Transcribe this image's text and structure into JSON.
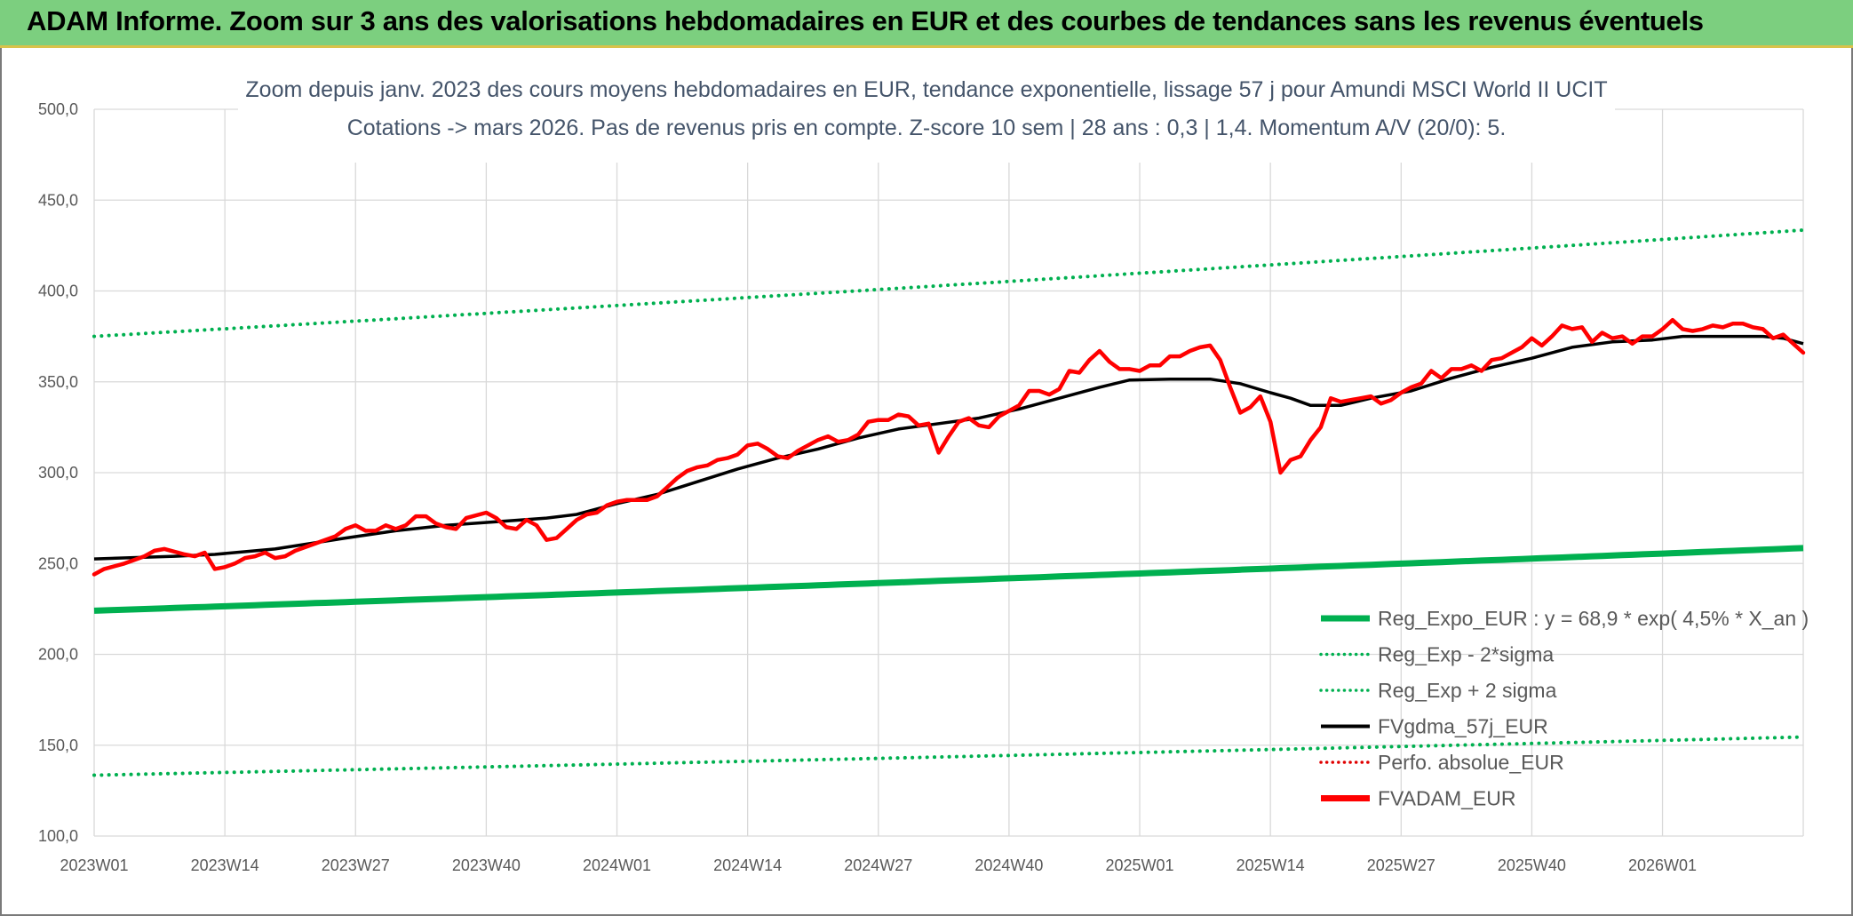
{
  "banner": {
    "title": "ADAM Informe. Zoom sur 3 ans des valorisations hebdomadaires en EUR et des courbes de tendances sans les revenus éventuels",
    "color": "#7ccf7f"
  },
  "chart_data": {
    "type": "line",
    "title": "",
    "subtitle_lines": [
      "Zoom depuis janv. 2023 des cours moyens hebdomadaires en EUR, tendance exponentielle, lissage 57 j pour Amundi MSCI World II UCIT",
      "Cotations -> mars 2026. Pas de revenus pris en compte. Z-score 10 sem | 28 ans : 0,3 | 1,4. Momentum A/V (20/0): 5."
    ],
    "xlabel": "",
    "ylabel": "",
    "ylim": [
      100,
      500
    ],
    "y_ticks": [
      "100,0",
      "150,0",
      "200,0",
      "250,0",
      "300,0",
      "350,0",
      "400,0",
      "450,0",
      "500,0"
    ],
    "x_tick_labels": [
      "2023W01",
      "2023W14",
      "2023W27",
      "2023W40",
      "2024W01",
      "2024W14",
      "2024W27",
      "2024W40",
      "2025W01",
      "2025W14",
      "2025W27",
      "2025W40",
      "2026W01"
    ],
    "x_tick_index": [
      0,
      13,
      26,
      39,
      52,
      65,
      78,
      91,
      104,
      117,
      130,
      143,
      156
    ],
    "x_count": 171,
    "grid": true,
    "legend_position": "bottom-right",
    "series": [
      {
        "name": "Reg_Expo_EUR : y = 68,9 * exp( 4,5% *  X_an )",
        "color": "#00b050",
        "style": "solid-thick",
        "start": 224,
        "end": 258.5
      },
      {
        "name": "Reg_Exp - 2*sigma",
        "color": "#00b050",
        "style": "dotted",
        "start": 133.5,
        "end": 154.5
      },
      {
        "name": "Reg_Exp + 2 sigma",
        "color": "#00b050",
        "style": "dotted",
        "start": 375,
        "end": 433.5
      },
      {
        "name": "FVgdma_57j_EUR",
        "color": "#000000",
        "style": "solid",
        "points": [
          [
            0,
            252.5
          ],
          [
            8,
            254
          ],
          [
            12,
            255
          ],
          [
            18,
            258
          ],
          [
            25,
            264
          ],
          [
            30,
            268
          ],
          [
            35,
            271
          ],
          [
            40,
            273
          ],
          [
            45,
            275
          ],
          [
            48,
            277
          ],
          [
            52,
            283
          ],
          [
            56,
            288
          ],
          [
            60,
            295
          ],
          [
            64,
            302
          ],
          [
            68,
            308
          ],
          [
            72,
            313
          ],
          [
            76,
            319
          ],
          [
            80,
            324
          ],
          [
            84,
            327
          ],
          [
            88,
            330
          ],
          [
            92,
            335
          ],
          [
            96,
            341
          ],
          [
            100,
            347
          ],
          [
            103,
            351
          ],
          [
            107,
            351.5
          ],
          [
            111,
            351.5
          ],
          [
            114,
            349
          ],
          [
            117,
            344
          ],
          [
            119,
            341
          ],
          [
            121,
            337
          ],
          [
            124,
            337
          ],
          [
            127,
            341
          ],
          [
            131,
            345
          ],
          [
            135,
            352
          ],
          [
            139,
            358
          ],
          [
            143,
            363
          ],
          [
            147,
            369
          ],
          [
            151,
            372
          ],
          [
            155,
            373
          ],
          [
            158,
            375
          ],
          [
            161,
            375
          ],
          [
            164,
            375
          ],
          [
            166,
            375
          ],
          [
            168,
            374
          ],
          [
            170,
            371
          ]
        ]
      },
      {
        "name": "Perfo. absolue_EUR",
        "color": "#e00000",
        "style": "dotted-legend-only"
      },
      {
        "name": "FVADAM_EUR",
        "color": "#ff0000",
        "style": "solid-thick",
        "points": [
          [
            0,
            244
          ],
          [
            1,
            247
          ],
          [
            3,
            250
          ],
          [
            5,
            254
          ],
          [
            6,
            257
          ],
          [
            7,
            258
          ],
          [
            9,
            255
          ],
          [
            10,
            254
          ],
          [
            11,
            256
          ],
          [
            12,
            247
          ],
          [
            13,
            248
          ],
          [
            14,
            250
          ],
          [
            15,
            253
          ],
          [
            16,
            254
          ],
          [
            17,
            256
          ],
          [
            18,
            253
          ],
          [
            19,
            254
          ],
          [
            20,
            257
          ],
          [
            22,
            261
          ],
          [
            24,
            265
          ],
          [
            25,
            269
          ],
          [
            26,
            271
          ],
          [
            27,
            268
          ],
          [
            28,
            268
          ],
          [
            29,
            271
          ],
          [
            30,
            269
          ],
          [
            31,
            271
          ],
          [
            32,
            276
          ],
          [
            33,
            276
          ],
          [
            34,
            272
          ],
          [
            35,
            270
          ],
          [
            36,
            269
          ],
          [
            37,
            275
          ],
          [
            39,
            278
          ],
          [
            40,
            275
          ],
          [
            41,
            270
          ],
          [
            42,
            269
          ],
          [
            43,
            274
          ],
          [
            44,
            271
          ],
          [
            45,
            263
          ],
          [
            46,
            264
          ],
          [
            47,
            269
          ],
          [
            48,
            274
          ],
          [
            49,
            277
          ],
          [
            50,
            278
          ],
          [
            51,
            282
          ],
          [
            52,
            284
          ],
          [
            53,
            285
          ],
          [
            54,
            285
          ],
          [
            55,
            285
          ],
          [
            56,
            287
          ],
          [
            57,
            292
          ],
          [
            58,
            297
          ],
          [
            59,
            301
          ],
          [
            60,
            303
          ],
          [
            61,
            304
          ],
          [
            62,
            307
          ],
          [
            63,
            308
          ],
          [
            64,
            310
          ],
          [
            65,
            315
          ],
          [
            66,
            316
          ],
          [
            67,
            313
          ],
          [
            68,
            309
          ],
          [
            69,
            308
          ],
          [
            70,
            312
          ],
          [
            71,
            315
          ],
          [
            72,
            318
          ],
          [
            73,
            320
          ],
          [
            74,
            317
          ],
          [
            75,
            318
          ],
          [
            76,
            321
          ],
          [
            77,
            328
          ],
          [
            78,
            329
          ],
          [
            79,
            329
          ],
          [
            80,
            332
          ],
          [
            81,
            331
          ],
          [
            82,
            326
          ],
          [
            83,
            327
          ],
          [
            84,
            311
          ],
          [
            85,
            320
          ],
          [
            86,
            328
          ],
          [
            87,
            330
          ],
          [
            88,
            326
          ],
          [
            89,
            325
          ],
          [
            90,
            331
          ],
          [
            91,
            334
          ],
          [
            92,
            337
          ],
          [
            93,
            345
          ],
          [
            94,
            345
          ],
          [
            95,
            343
          ],
          [
            96,
            346
          ],
          [
            97,
            356
          ],
          [
            98,
            355
          ],
          [
            99,
            362
          ],
          [
            100,
            367
          ],
          [
            101,
            361
          ],
          [
            102,
            357
          ],
          [
            103,
            357
          ],
          [
            104,
            356
          ],
          [
            105,
            359
          ],
          [
            106,
            359
          ],
          [
            107,
            364
          ],
          [
            108,
            364
          ],
          [
            109,
            367
          ],
          [
            110,
            369
          ],
          [
            111,
            370
          ],
          [
            112,
            362
          ],
          [
            113,
            347
          ],
          [
            114,
            333
          ],
          [
            115,
            336
          ],
          [
            116,
            342
          ],
          [
            117,
            328
          ],
          [
            118,
            300
          ],
          [
            119,
            307
          ],
          [
            120,
            309
          ],
          [
            121,
            318
          ],
          [
            122,
            325
          ],
          [
            123,
            341
          ],
          [
            124,
            339
          ],
          [
            125,
            340
          ],
          [
            126,
            341
          ],
          [
            127,
            342
          ],
          [
            128,
            338
          ],
          [
            129,
            340
          ],
          [
            130,
            344
          ],
          [
            131,
            347
          ],
          [
            132,
            349
          ],
          [
            133,
            356
          ],
          [
            134,
            352
          ],
          [
            135,
            357
          ],
          [
            136,
            357
          ],
          [
            137,
            359
          ],
          [
            138,
            356
          ],
          [
            139,
            362
          ],
          [
            140,
            363
          ],
          [
            141,
            366
          ],
          [
            142,
            369
          ],
          [
            143,
            374
          ],
          [
            144,
            370
          ],
          [
            145,
            375
          ],
          [
            146,
            381
          ],
          [
            147,
            379
          ],
          [
            148,
            380
          ],
          [
            149,
            372
          ],
          [
            150,
            377
          ],
          [
            151,
            374
          ],
          [
            152,
            375
          ],
          [
            153,
            371
          ],
          [
            154,
            375
          ],
          [
            155,
            375
          ],
          [
            156,
            379
          ],
          [
            157,
            384
          ],
          [
            158,
            379
          ],
          [
            159,
            378
          ],
          [
            160,
            379
          ],
          [
            161,
            381
          ],
          [
            162,
            380
          ],
          [
            163,
            382
          ],
          [
            164,
            382
          ],
          [
            165,
            380
          ],
          [
            166,
            379
          ],
          [
            167,
            374
          ],
          [
            168,
            376
          ],
          [
            169,
            371
          ],
          [
            170,
            366
          ]
        ]
      }
    ]
  }
}
